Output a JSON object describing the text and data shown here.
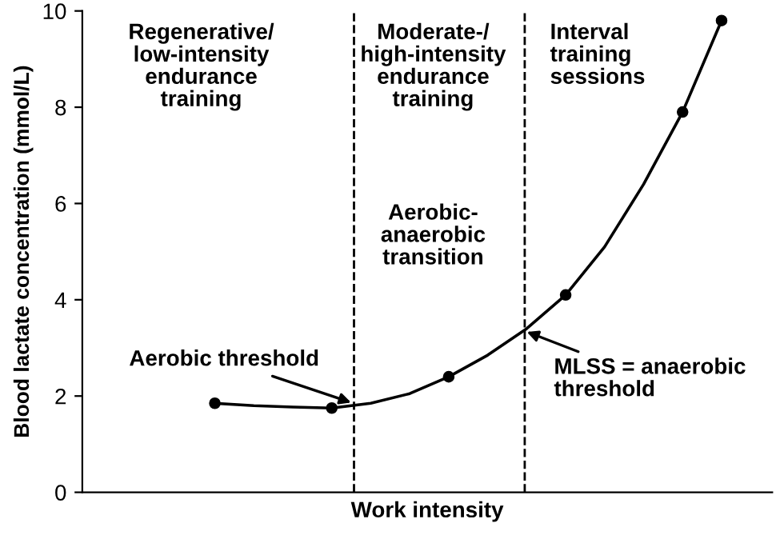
{
  "chart_data": {
    "type": "line",
    "xlabel": "Work intensity",
    "ylabel": "Blood lactate concentration (mmol/L)",
    "categories": [
      null,
      null,
      null,
      null,
      null,
      null,
      null,
      null,
      null,
      null,
      null,
      null,
      null,
      null
    ],
    "series": [
      {
        "marker": "none",
        "color": "#000000",
        "values": [
          1.85,
          1.8,
          1.77,
          1.75,
          1.85,
          2.05,
          2.4,
          2.85,
          3.4,
          4.1,
          5.1,
          6.4,
          7.9,
          9.8
        ]
      },
      {
        "type": "scatter",
        "marker": "circle",
        "color": "#000000",
        "values": [
          1.85,
          null,
          null,
          1.75,
          null,
          null,
          2.4,
          null,
          null,
          4.1,
          null,
          null,
          7.9,
          9.8
        ]
      }
    ],
    "line_style": "solid",
    "grid": false,
    "legend": false,
    "tick_labels": "y",
    "ylim": [
      0,
      10
    ],
    "yticks": [
      0,
      2,
      4,
      6,
      8,
      10
    ],
    "annotations": [
      "Regenerative/\nlow-intensity\nendurance\ntraining",
      "Moderate-/\nhigh-intensity\nendurance\ntraining",
      "Interval\ntraining\nsessions",
      "Aerobic-\nanaerobic\ntransition",
      "Aerobic threshold",
      "MLSS = anaerobic\nthreshold"
    ]
  }
}
